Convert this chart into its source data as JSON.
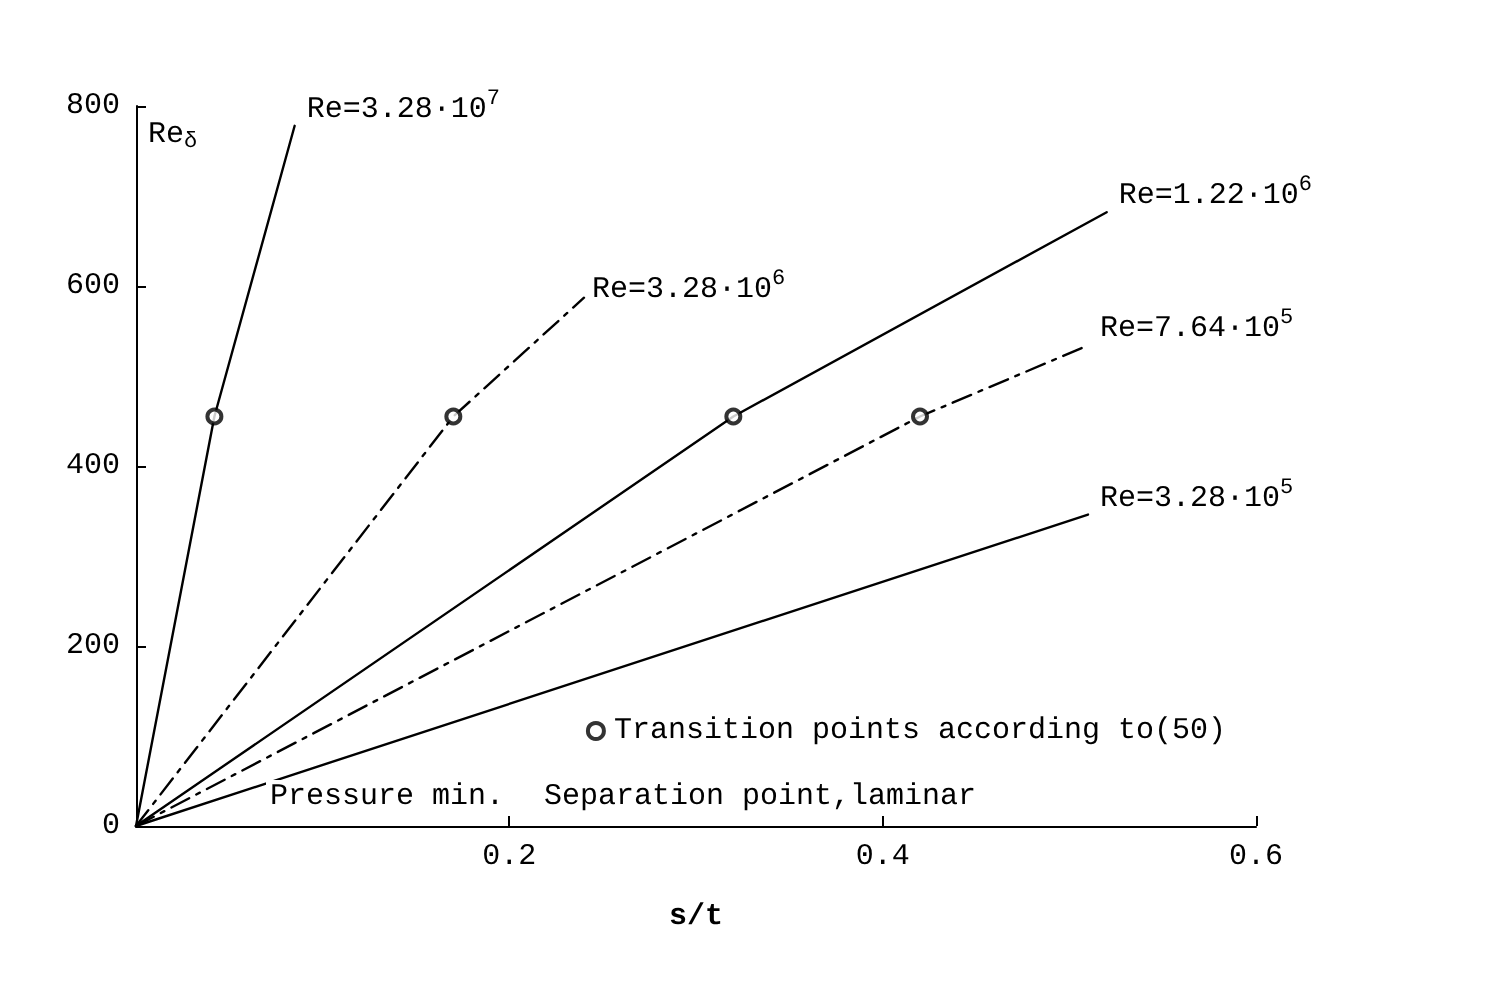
{
  "chart_data": {
    "type": "line",
    "xlabel": "s/t",
    "ylabel": "Re$_{δ}$",
    "xlim": [
      0,
      0.6
    ],
    "xticks": [
      0.2,
      0.4,
      0.6
    ],
    "ylim": [
      0,
      800
    ],
    "yticks": [
      0,
      200,
      400,
      600,
      800
    ],
    "grid": false,
    "legend": "bottom right",
    "marker": "none",
    "series": [
      {
        "name": "Re=3.28·10$^{7}$",
        "color": "#000000",
        "line_style": "solid",
        "x": [
          0,
          0.042,
          0.085
        ],
        "values": [
          0,
          455,
          778
        ]
      },
      {
        "name": "Re=3.28·10$^{6}$",
        "color": "#000000",
        "line_style": "dashed",
        "x": [
          0,
          0.17,
          0.24
        ],
        "values": [
          0,
          455,
          587
        ]
      },
      {
        "name": "Re=1.22·10$^{6}$",
        "color": "#000000",
        "line_style": "solid",
        "x": [
          0,
          0.32,
          0.52
        ],
        "values": [
          0,
          455,
          682
        ]
      },
      {
        "name": "Re=7.64·10$^{5}$",
        "color": "#000000",
        "line_style": "dashed",
        "x": [
          0,
          0.42,
          0.51
        ],
        "values": [
          0,
          455,
          534
        ]
      },
      {
        "name": "Re=3.28·10$^{5}$",
        "color": "#000000",
        "line_style": "solid",
        "x": [
          0,
          0.51
        ],
        "values": [
          0,
          346
        ]
      },
      {
        "name": "Transition points according to(50)",
        "type": "scatter",
        "marker": "circle",
        "color": "#000000",
        "x": [
          0.042,
          0.17,
          0.32,
          0.42
        ],
        "values": [
          455,
          455,
          455,
          455
        ]
      }
    ],
    "annotations": [
      "Pressure min.",
      "Separation point,laminar"
    ]
  }
}
